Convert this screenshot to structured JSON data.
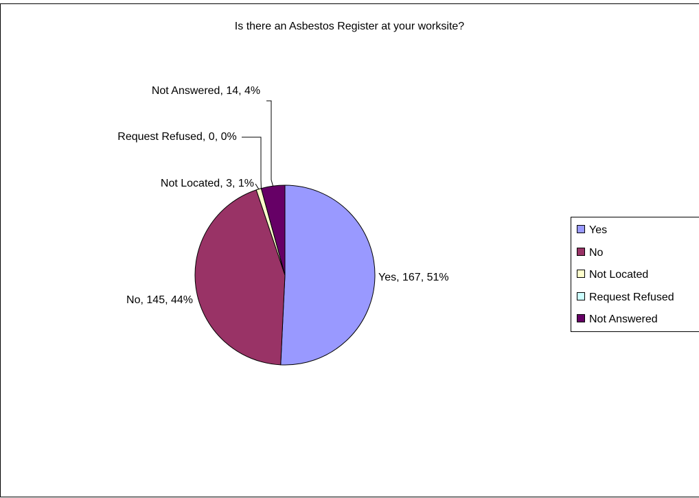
{
  "chart_data": {
    "type": "pie",
    "title": "Is there an Asbestos Register at your worksite?",
    "categories": [
      "Yes",
      "No",
      "Not Located",
      "Request Refused",
      "Not Answered"
    ],
    "values": [
      167,
      145,
      3,
      0,
      14
    ],
    "value_labels": [
      "Yes, 167, 51%",
      "No, 145, 44%",
      "Not Located, 3, 1%",
      "Request Refused, 0, 0%",
      "Not Answered, 14, 4%"
    ],
    "colors": [
      "#9999ff",
      "#993366",
      "#ffffcc",
      "#ccffff",
      "#660066"
    ],
    "legend": "right"
  }
}
